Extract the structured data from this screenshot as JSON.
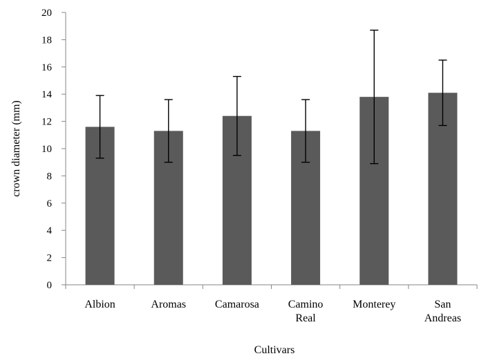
{
  "chart_data": {
    "type": "bar",
    "title": "",
    "xlabel": "Cultivars",
    "ylabel": "crown diameter (mm)",
    "categories": [
      [
        "Albion"
      ],
      [
        "Aromas"
      ],
      [
        "Camarosa"
      ],
      [
        "Camino",
        "Real"
      ],
      [
        "Monterey"
      ],
      [
        "San",
        "Andreas"
      ]
    ],
    "values": [
      11.6,
      11.3,
      12.4,
      11.3,
      13.8,
      14.1
    ],
    "error": [
      2.3,
      2.3,
      2.9,
      2.3,
      4.9,
      2.4
    ],
    "ylim": [
      0,
      20
    ],
    "yticks": [
      0,
      2,
      4,
      6,
      8,
      10,
      12,
      14,
      16,
      18,
      20
    ],
    "grid": false,
    "colors": {
      "bar": "#5a5a5a",
      "axis": "#868686",
      "error_bar": "#000000"
    }
  }
}
